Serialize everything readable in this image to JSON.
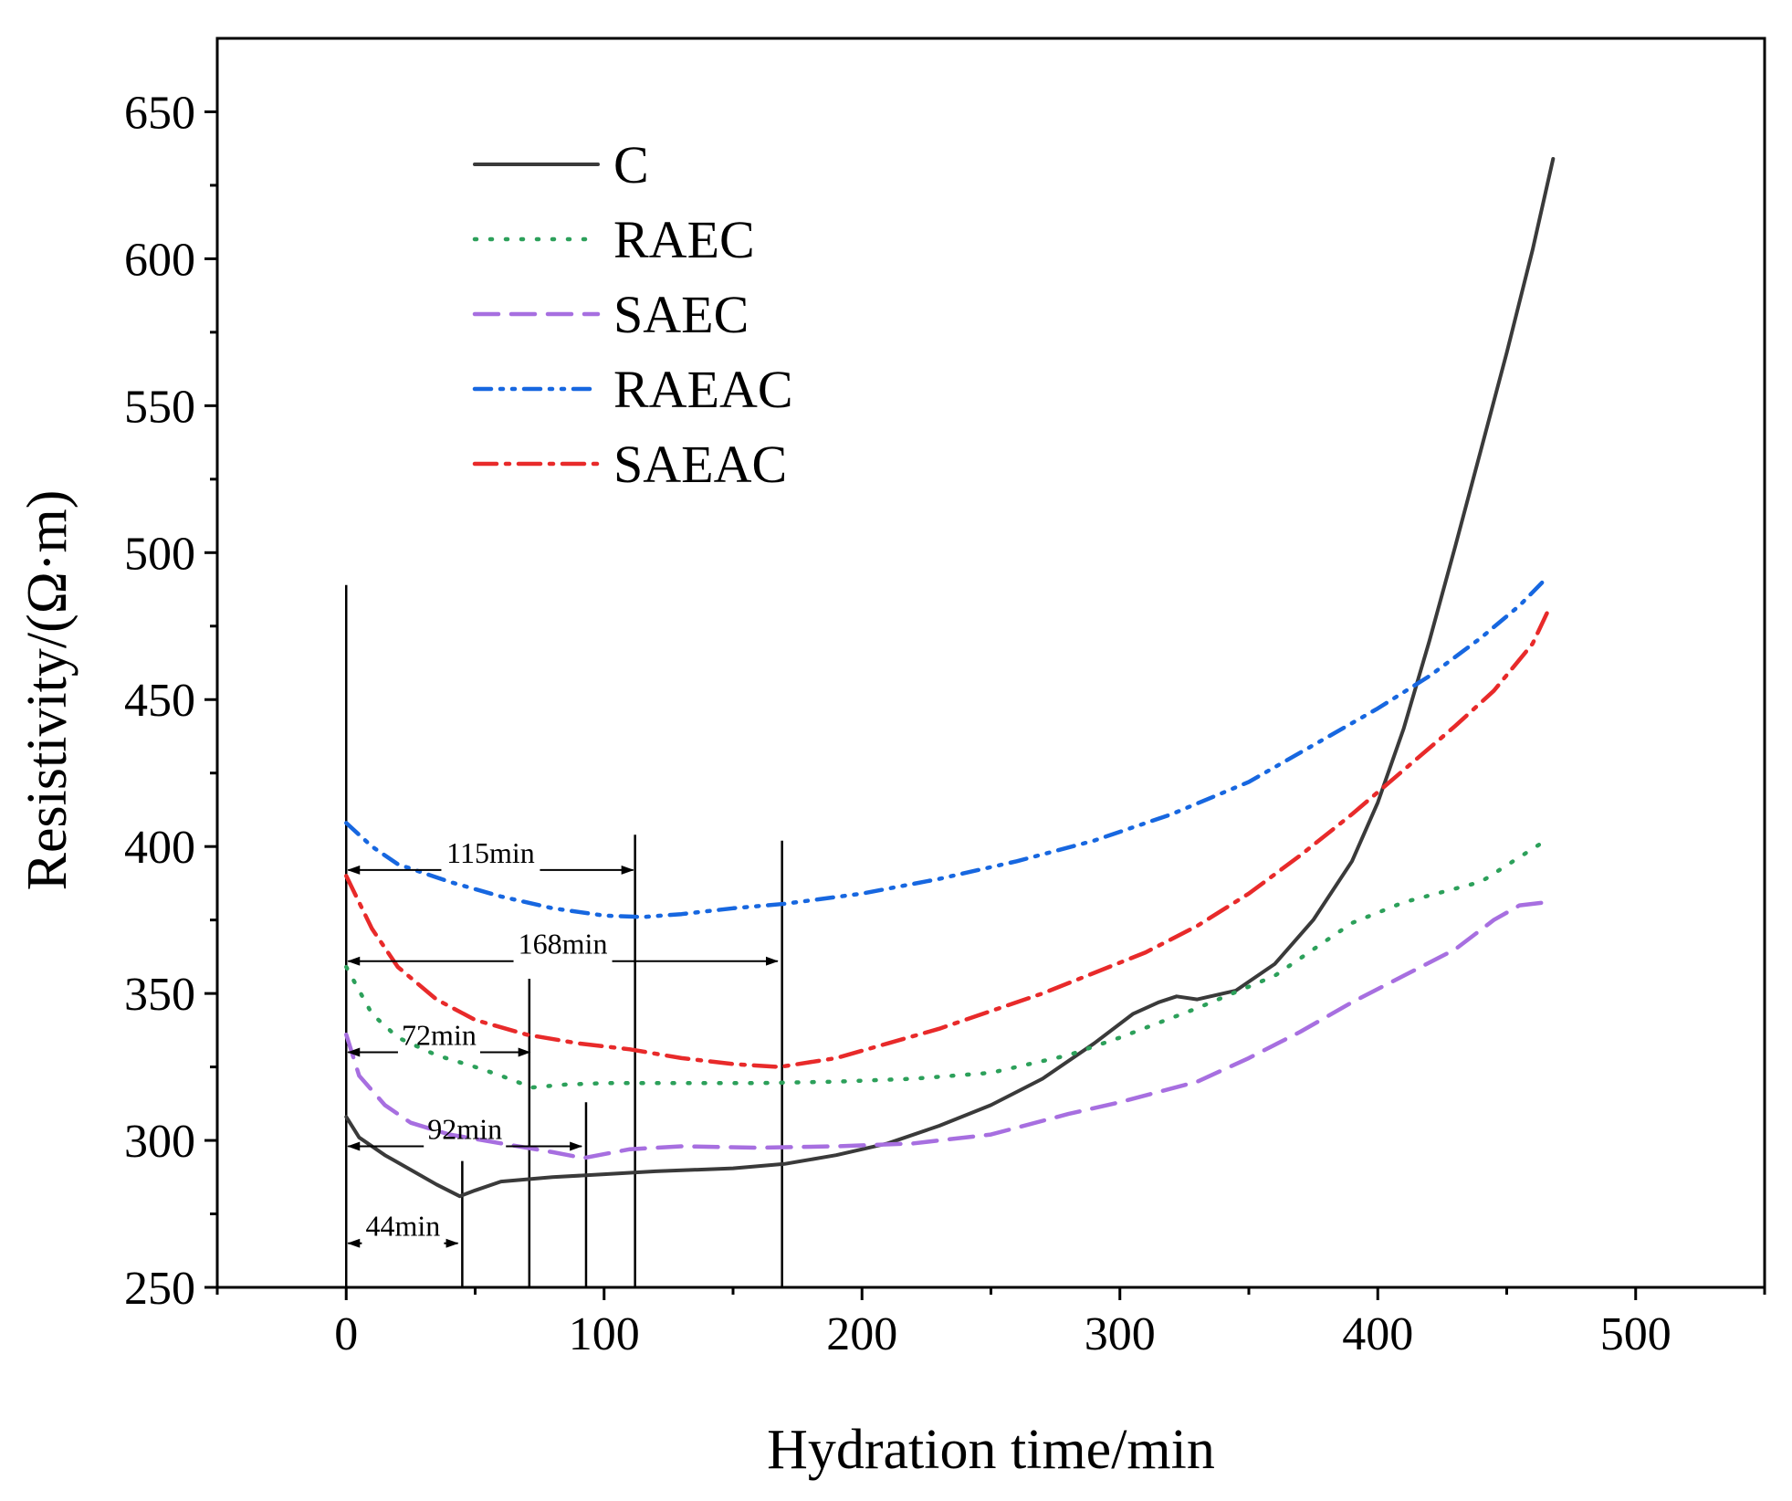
{
  "chart_data": {
    "type": "line",
    "xlabel": "Hydration time/min",
    "ylabel": "Resistivity/(Ω·m)",
    "xlim": [
      -50,
      550
    ],
    "ylim": [
      250,
      675
    ],
    "xticks": [
      0,
      100,
      200,
      300,
      400,
      500
    ],
    "yticks": [
      250,
      300,
      350,
      400,
      450,
      500,
      550,
      600,
      650
    ],
    "legend_position": "top-left",
    "series": [
      {
        "name": "C",
        "color": "#3a3a3a",
        "dash": "solid",
        "points": [
          [
            0,
            308
          ],
          [
            5,
            301
          ],
          [
            15,
            295
          ],
          [
            25,
            290
          ],
          [
            35,
            285
          ],
          [
            44,
            281
          ],
          [
            50,
            283
          ],
          [
            60,
            286
          ],
          [
            80,
            287.5
          ],
          [
            100,
            288.5
          ],
          [
            120,
            289.5
          ],
          [
            150,
            290.5
          ],
          [
            170,
            292
          ],
          [
            190,
            295
          ],
          [
            210,
            299
          ],
          [
            230,
            305
          ],
          [
            250,
            312
          ],
          [
            270,
            321
          ],
          [
            290,
            333
          ],
          [
            305,
            343
          ],
          [
            315,
            347
          ],
          [
            322,
            349
          ],
          [
            330,
            348
          ],
          [
            345,
            351
          ],
          [
            360,
            360
          ],
          [
            375,
            375
          ],
          [
            390,
            395
          ],
          [
            400,
            415
          ],
          [
            410,
            440
          ],
          [
            420,
            470
          ],
          [
            430,
            502
          ],
          [
            440,
            535
          ],
          [
            450,
            568
          ],
          [
            460,
            603
          ],
          [
            468,
            634
          ]
        ]
      },
      {
        "name": "RAEC",
        "color": "#2ca05a",
        "dash": "dot",
        "points": [
          [
            0,
            359
          ],
          [
            10,
            343
          ],
          [
            20,
            335
          ],
          [
            35,
            329
          ],
          [
            50,
            325
          ],
          [
            60,
            322
          ],
          [
            72,
            318
          ],
          [
            85,
            319
          ],
          [
            100,
            319.5
          ],
          [
            130,
            319.5
          ],
          [
            160,
            319.5
          ],
          [
            190,
            320
          ],
          [
            220,
            321
          ],
          [
            250,
            323
          ],
          [
            280,
            329
          ],
          [
            300,
            335
          ],
          [
            330,
            345
          ],
          [
            360,
            356
          ],
          [
            390,
            374
          ],
          [
            410,
            381
          ],
          [
            440,
            388
          ],
          [
            465,
            402
          ]
        ]
      },
      {
        "name": "SAEC",
        "color": "#a76fe0",
        "dash": "dash",
        "points": [
          [
            0,
            336
          ],
          [
            5,
            322
          ],
          [
            15,
            312
          ],
          [
            25,
            306
          ],
          [
            40,
            302
          ],
          [
            60,
            299
          ],
          [
            80,
            296
          ],
          [
            92,
            294
          ],
          [
            110,
            297
          ],
          [
            130,
            298
          ],
          [
            160,
            297.5
          ],
          [
            190,
            298
          ],
          [
            220,
            299
          ],
          [
            250,
            302
          ],
          [
            280,
            309
          ],
          [
            300,
            313
          ],
          [
            330,
            320
          ],
          [
            350,
            328
          ],
          [
            370,
            337
          ],
          [
            390,
            347
          ],
          [
            410,
            356
          ],
          [
            430,
            365
          ],
          [
            445,
            375
          ],
          [
            455,
            380
          ],
          [
            465,
            381
          ]
        ]
      },
      {
        "name": "RAEAC",
        "color": "#1767e0",
        "dash": "dashdotdot",
        "points": [
          [
            0,
            408
          ],
          [
            10,
            400
          ],
          [
            20,
            394
          ],
          [
            40,
            388
          ],
          [
            60,
            383
          ],
          [
            80,
            379
          ],
          [
            100,
            376.5
          ],
          [
            115,
            376
          ],
          [
            130,
            377
          ],
          [
            150,
            379
          ],
          [
            170,
            380.5
          ],
          [
            200,
            384
          ],
          [
            230,
            389
          ],
          [
            260,
            395
          ],
          [
            290,
            402
          ],
          [
            320,
            411
          ],
          [
            350,
            422
          ],
          [
            380,
            437
          ],
          [
            400,
            447
          ],
          [
            420,
            458
          ],
          [
            440,
            471
          ],
          [
            455,
            482
          ],
          [
            465,
            491
          ]
        ]
      },
      {
        "name": "SAEAC",
        "color": "#e82a2a",
        "dash": "dashdot",
        "points": [
          [
            0,
            390
          ],
          [
            10,
            372
          ],
          [
            20,
            359
          ],
          [
            35,
            348
          ],
          [
            50,
            341
          ],
          [
            70,
            336
          ],
          [
            90,
            333
          ],
          [
            110,
            331
          ],
          [
            130,
            328
          ],
          [
            150,
            326
          ],
          [
            168,
            325
          ],
          [
            190,
            328
          ],
          [
            210,
            333
          ],
          [
            230,
            338
          ],
          [
            250,
            344
          ],
          [
            270,
            350
          ],
          [
            290,
            357
          ],
          [
            310,
            364
          ],
          [
            330,
            373
          ],
          [
            350,
            384
          ],
          [
            370,
            397
          ],
          [
            390,
            411
          ],
          [
            410,
            426
          ],
          [
            430,
            441
          ],
          [
            445,
            453
          ],
          [
            460,
            469
          ],
          [
            467,
            482
          ]
        ]
      }
    ],
    "annotations": [
      {
        "label": "44min",
        "start": 0,
        "end": 44,
        "y": 265
      },
      {
        "label": "72min",
        "start": 0,
        "end": 72,
        "y": 330
      },
      {
        "label": "92min",
        "start": 0,
        "end": 92,
        "y": 298
      },
      {
        "label": "115min",
        "start": 0,
        "end": 112,
        "y": 392
      },
      {
        "label": "168min",
        "start": 0,
        "end": 168,
        "y": 361
      }
    ],
    "vertical_lines": [
      {
        "x": 0,
        "top": 489
      },
      {
        "x": 45,
        "top": 293
      },
      {
        "x": 71,
        "top": 355
      },
      {
        "x": 93,
        "top": 313
      },
      {
        "x": 112,
        "top": 404
      },
      {
        "x": 169,
        "top": 402
      }
    ]
  }
}
